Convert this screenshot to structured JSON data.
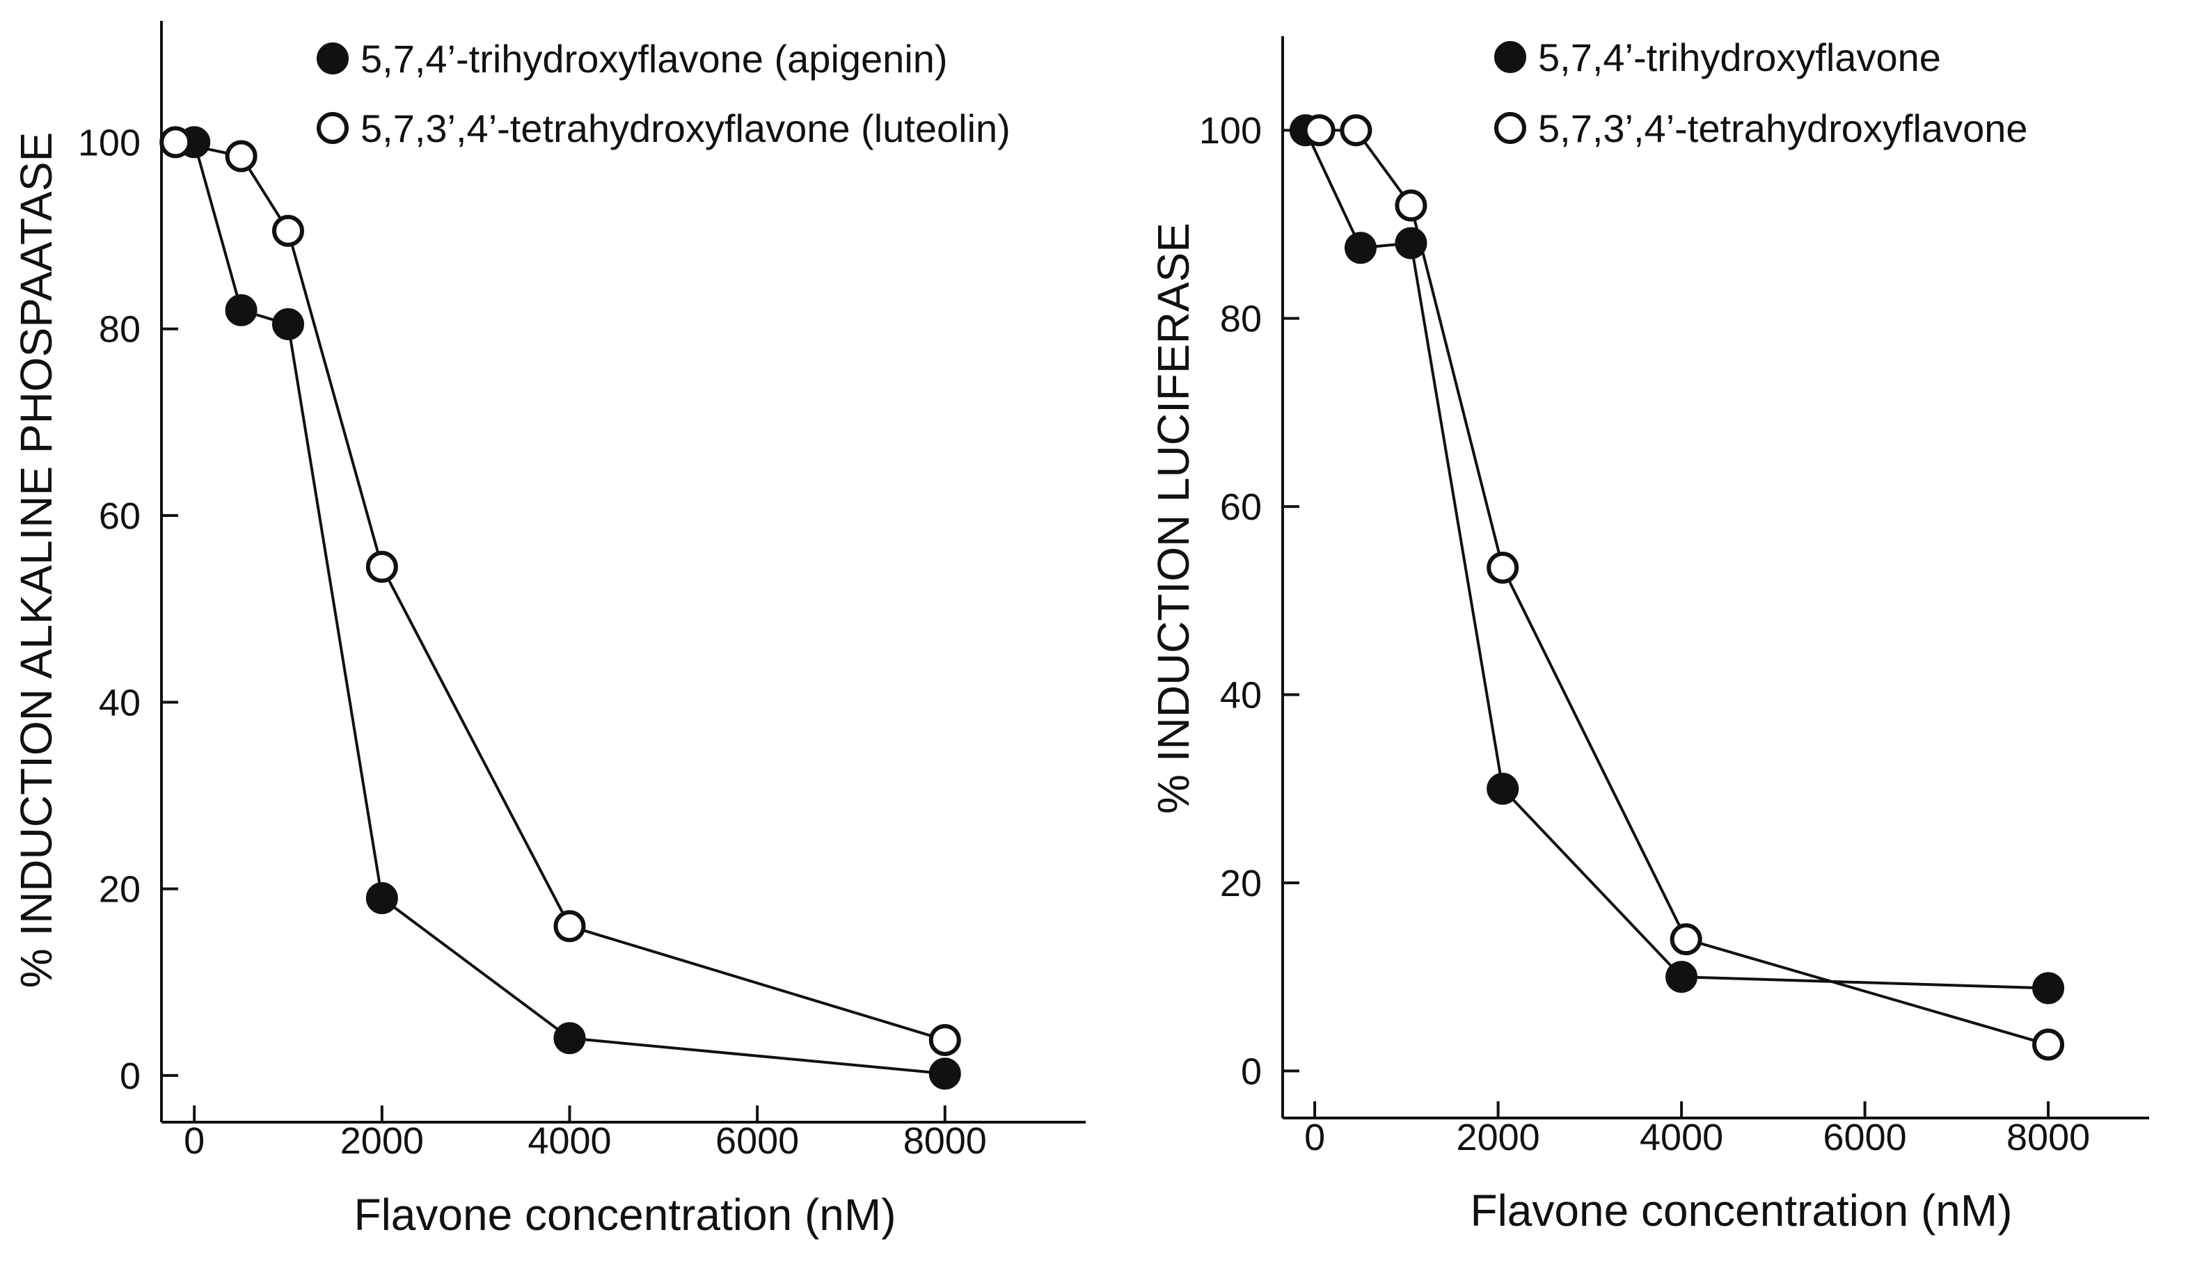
{
  "colors": {
    "ink": "#111111",
    "background": "#ffffff"
  },
  "chart_data": [
    {
      "type": "line",
      "title": "",
      "xlabel": "Flavone concentration (nM)",
      "ylabel": "% INDUCTION ALKALINE PHOSPAATASE",
      "xlim": [
        -350,
        9500
      ],
      "ylim": [
        -5,
        113
      ],
      "xticks": [
        0,
        2000,
        4000,
        6000,
        8000
      ],
      "xtick_labels": [
        "0",
        "2000",
        "4000",
        "6000",
        "8000"
      ],
      "yticks": [
        0,
        20,
        40,
        60,
        80,
        100
      ],
      "ytick_labels": [
        "0",
        "20",
        "40",
        "60",
        "80",
        "100"
      ],
      "legend_position": "top-left",
      "series": [
        {
          "name": "5,7,4’-trihydroxyflavone (apigenin)",
          "marker": "filled-circle",
          "x": [
            0,
            500,
            1000,
            2000,
            4000,
            8000
          ],
          "y": [
            100,
            82,
            80.5,
            19,
            4,
            0.2
          ]
        },
        {
          "name": "5,7,3’,4’-tetrahydroxyflavone (luteolin)",
          "marker": "open-circle",
          "x": [
            -200,
            500,
            1000,
            2000,
            4000,
            8000
          ],
          "y": [
            100,
            98.5,
            90.5,
            54.5,
            16,
            3.8
          ]
        }
      ]
    },
    {
      "type": "line",
      "title": "",
      "xlabel": "Flavone concentration (nM)",
      "ylabel": "% INDUCTION LUCIFERASE",
      "xlim": [
        -350,
        9100
      ],
      "ylim": [
        -5,
        110
      ],
      "xticks": [
        0,
        2000,
        4000,
        6000,
        8000
      ],
      "xtick_labels": [
        "0",
        "2000",
        "4000",
        "6000",
        "8000"
      ],
      "yticks": [
        0,
        20,
        40,
        60,
        80,
        100
      ],
      "ytick_labels": [
        "0",
        "20",
        "40",
        "60",
        "80",
        "100"
      ],
      "legend_position": "top-right",
      "series": [
        {
          "name": "5,7,4’-trihydroxyflavone",
          "marker": "filled-circle",
          "x": [
            -100,
            500,
            1050,
            2050,
            4000,
            8000
          ],
          "y": [
            100,
            87.5,
            88,
            30,
            10,
            8.8
          ]
        },
        {
          "name": "5,7,3’,4’-tetrahydroxyflavone",
          "marker": "open-circle",
          "x": [
            50,
            450,
            1050,
            2050,
            4050,
            8000
          ],
          "y": [
            100,
            100,
            92,
            53.5,
            14,
            2.8
          ]
        }
      ]
    }
  ]
}
